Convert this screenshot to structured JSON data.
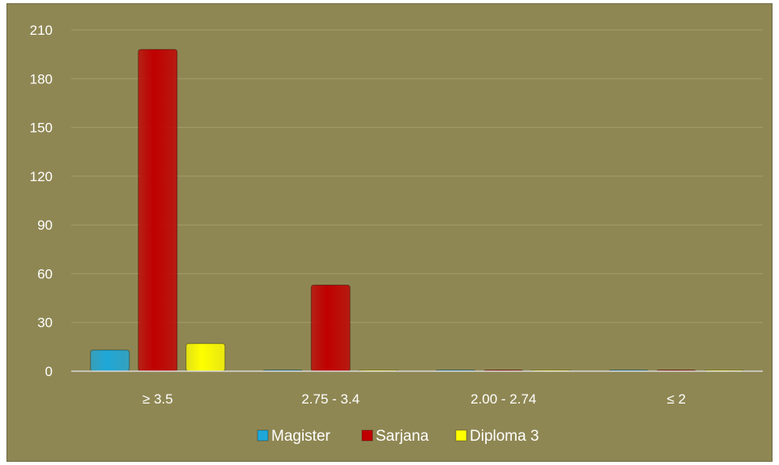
{
  "chart_data": {
    "type": "bar",
    "categories": [
      "≥ 3.5",
      "2.75 - 3.4",
      "2.00 - 2.74",
      "≤ 2"
    ],
    "series": [
      {
        "name": "Magister",
        "values": [
          13,
          0,
          0,
          0
        ],
        "color": "#1ea7d8"
      },
      {
        "name": "Sarjana",
        "values": [
          198,
          53,
          0,
          0
        ],
        "color": "#c00000"
      },
      {
        "name": "Diploma 3",
        "values": [
          17,
          0,
          0,
          0
        ],
        "color": "#ffff00"
      }
    ],
    "ylim": [
      0,
      210
    ],
    "yticks": [
      "0",
      "30",
      "60",
      "90",
      "120",
      "150",
      "180",
      "210"
    ],
    "grid": true,
    "legend_position": "bottom",
    "background_color": "#8f8753"
  }
}
